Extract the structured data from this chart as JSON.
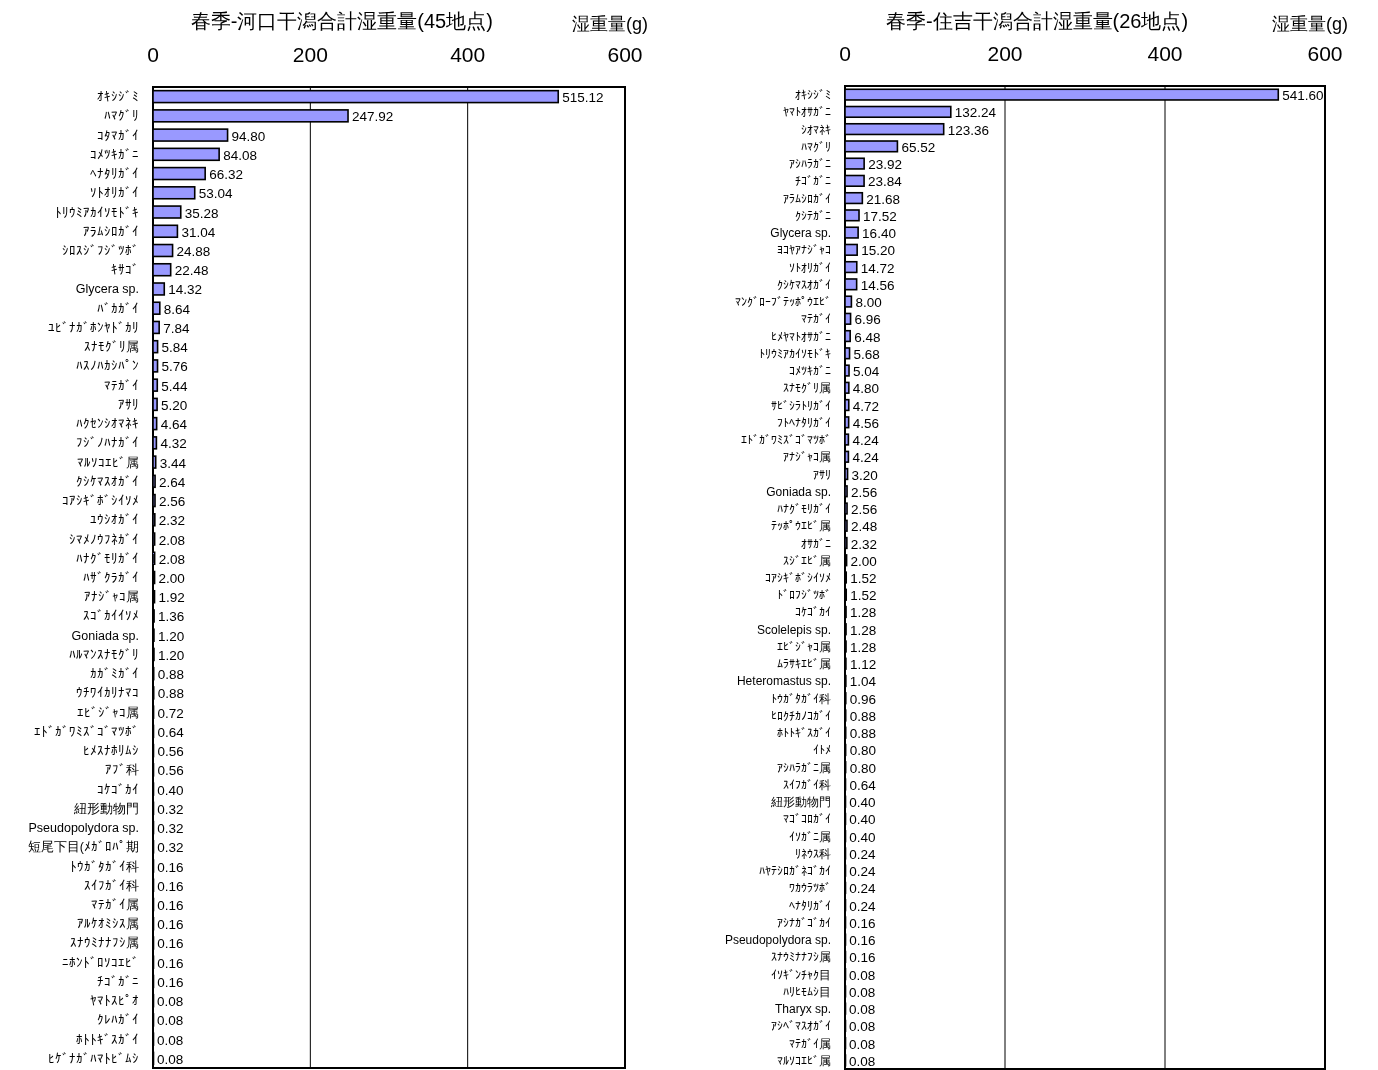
{
  "chart_data": [
    {
      "type": "bar",
      "orientation": "horizontal",
      "title": "春季-河口干潟合計湿重量(45地点)",
      "xlabel": "湿重量(g)",
      "color": "#9999ff",
      "xlim": [
        0,
        600
      ],
      "xticks": [
        0,
        200,
        400,
        600
      ],
      "grid": "x",
      "categories": [
        "ｵｷｼｼﾞﾐ",
        "ﾊﾏｸﾞﾘ",
        "ｺﾀﾏｶﾞｲ",
        "ｺﾒﾂｷｶﾞﾆ",
        "ﾍﾅﾀﾘｶﾞｲ",
        "ｿﾄｵﾘｶﾞｲ",
        "ﾄﾘｳﾐｱｶｲｿﾓﾄﾞｷ",
        "ｱﾗﾑｼﾛｶﾞｲ",
        "ｼﾛｽｼﾞﾌｼﾞﾂﾎﾞ",
        "ｷｻｺﾞ",
        "Glycera sp.",
        "ﾊﾞｶｶﾞｲ",
        "ﾕﾋﾞﾅｶﾞﾎﾝﾔﾄﾞｶﾘ",
        "ｽﾅﾓｸﾞﾘ属",
        "ﾊｽﾉﾊｶｼﾊﾟﾝ",
        "ﾏﾃｶﾞｲ",
        "ｱｻﾘ",
        "ﾊｸｾﾝｼｵﾏﾈｷ",
        "ﾌｼﾞﾉﾊﾅｶﾞｲ",
        "ﾏﾙｿｺｴﾋﾞ属",
        "ｸｼｹﾏｽｵｶﾞｲ",
        "ｺｱｼｷﾞﾎﾞｼｲｿﾒ",
        "ﾕｳｼｵｶﾞｲ",
        "ｼﾏﾒﾉｳﾌﾈｶﾞｲ",
        "ﾊﾅｸﾞﾓﾘｶﾞｲ",
        "ﾊｻﾞｸﾗｶﾞｲ",
        "ｱﾅｼﾞｬｺ属",
        "ｽｺﾞｶｲｲｿﾒ",
        "Goniada sp.",
        "ﾊﾙﾏﾝｽﾅﾓｸﾞﾘ",
        "ｶｶﾞﾐｶﾞｲ",
        "ｳﾁﾜｲｶﾘﾅﾏｺ",
        "ｴﾋﾞｼﾞｬｺ属",
        "ｴﾄﾞｶﾞﾜﾐｽﾞｺﾞﾏﾂﾎﾞ",
        "ﾋﾒｽﾅﾎﾘﾑｼ",
        "ｱﾌﾞ科",
        "ｺｹｺﾞｶｲ",
        "紐形動物門",
        "Pseudopolydora sp.",
        "短尾下目(ﾒｶﾞﾛﾊﾟ期",
        "ﾄｳｶﾞﾀｶﾞｲ科",
        "ｽｲﾌｶﾞｲ科",
        "ﾏﾃｶﾞｲ属",
        "ｱﾙｹｵﾐｼｽ属",
        "ｽﾅｳﾐﾅﾅﾌｼ属",
        "ﾆﾎﾝﾄﾞﾛｿｺｴﾋﾞ",
        "ﾁｺﾞｶﾞﾆ",
        "ﾔﾏﾄｽﾋﾟｵ",
        "ｸﾚﾊｶﾞｲ",
        "ﾎﾄﾄｷﾞｽｶﾞｲ",
        "ﾋｹﾞﾅｶﾞﾊﾏﾄﾋﾞﾑｼ"
      ],
      "values": [
        515.12,
        247.92,
        94.8,
        84.08,
        66.32,
        53.04,
        35.28,
        31.04,
        24.88,
        22.48,
        14.32,
        8.64,
        7.84,
        5.84,
        5.76,
        5.44,
        5.2,
        4.64,
        4.32,
        3.44,
        2.64,
        2.56,
        2.32,
        2.08,
        2.08,
        2.0,
        1.92,
        1.36,
        1.2,
        1.2,
        0.88,
        0.88,
        0.72,
        0.64,
        0.56,
        0.56,
        0.4,
        0.32,
        0.32,
        0.32,
        0.16,
        0.16,
        0.16,
        0.16,
        0.16,
        0.16,
        0.16,
        0.08,
        0.08,
        0.08,
        0.08
      ],
      "value_labels": [
        "515.12",
        "247.92",
        "94.80",
        "84.08",
        "66.32",
        "53.04",
        "35.28",
        "31.04",
        "24.88",
        "22.48",
        "14.32",
        "8.64",
        "7.84",
        "5.84",
        "5.76",
        "5.44",
        "5.20",
        "4.64",
        "4.32",
        "3.44",
        "2.64",
        "2.56",
        "2.32",
        "2.08",
        "2.08",
        "2.00",
        "1.92",
        "1.36",
        "1.20",
        "1.20",
        "0.88",
        "0.88",
        "0.72",
        "0.64",
        "0.56",
        "0.56",
        "0.40",
        "0.32",
        "0.32",
        "0.32",
        "0.16",
        "0.16",
        "0.16",
        "0.16",
        "0.16",
        "0.16",
        "0.16",
        "0.08",
        "0.08",
        "0.08",
        "0.08"
      ]
    },
    {
      "type": "bar",
      "orientation": "horizontal",
      "title": "春季-住吉干潟合計湿重量(26地点)",
      "xlabel": "湿重量(g)",
      "color": "#9999ff",
      "xlim": [
        0,
        600
      ],
      "xticks": [
        0,
        200,
        400,
        600
      ],
      "grid": "x",
      "categories": [
        "ｵｷｼｼﾞﾐ",
        "ﾔﾏﾄｵｻｶﾞﾆ",
        "ｼｵﾏﾈｷ",
        "ﾊﾏｸﾞﾘ",
        "ｱｼﾊﾗｶﾞﾆ",
        "ﾁｺﾞｶﾞﾆ",
        "ｱﾗﾑｼﾛｶﾞｲ",
        "ｸｼﾃｶﾞﾆ",
        "Glycera sp.",
        "ﾖｺﾔｱﾅｼﾞｬｺ",
        "ｿﾄｵﾘｶﾞｲ",
        "ｸｼｹﾏｽｵｶﾞｲ",
        "ﾏﾝｸﾞﾛｰﾌﾞﾃｯﾎﾟｳｴﾋﾞ",
        "ﾏﾃｶﾞｲ",
        "ﾋﾒﾔﾏﾄｵｻｶﾞﾆ",
        "ﾄﾘｳﾐｱｶｲｿﾓﾄﾞｷ",
        "ｺﾒﾂｷｶﾞﾆ",
        "ｽﾅﾓｸﾞﾘ属",
        "ｻﾋﾞｼﾗﾄﾘｶﾞｲ",
        "ﾌﾄﾍﾅﾀﾘｶﾞｲ",
        "ｴﾄﾞｶﾞﾜﾐｽﾞｺﾞﾏﾂﾎﾞ",
        "ｱﾅｼﾞｬｺ属",
        "ｱｻﾘ",
        "Goniada sp.",
        "ﾊﾅｸﾞﾓﾘｶﾞｲ",
        "ﾃｯﾎﾟｳｴﾋﾞ属",
        "ｵｻｶﾞﾆ",
        "ｽｼﾞｴﾋﾞ属",
        "ｺｱｼｷﾞﾎﾞｼｲｿﾒ",
        "ﾄﾞﾛﾌｼﾞﾂﾎﾞ",
        "ｺｹｺﾞｶｲ",
        "Scolelepis sp.",
        "ｴﾋﾞｼﾞｬｺ属",
        "ﾑﾗｻｷｴﾋﾞ属",
        "Heteromastus sp.",
        "ﾄｳｶﾞﾀｶﾞｲ科",
        "ﾋﾛｸﾁｶﾉｺｶﾞｲ",
        "ﾎﾄﾄｷﾞｽｶﾞｲ",
        "ｲﾄﾒ",
        "ｱｼﾊﾗｶﾞﾆ属",
        "ｽｲﾌｶﾞｲ科",
        "紐形動物門",
        "ﾏｺﾞｺﾛｶﾞｲ",
        "ｲｿｶﾞﾆ属",
        "ﾘﾈｳｽ科",
        "ﾊﾔﾃｼﾛｶﾞﾈｺﾞｶｲ",
        "ﾜｶｳﾗﾂﾎﾞ",
        "ﾍﾅﾀﾘｶﾞｲ",
        "ｱｼﾅｶﾞｺﾞｶｲ",
        "Pseudopolydora sp.",
        "ｽﾅｳﾐﾅﾅﾌｼ属",
        "ｲｿｷﾞﾝﾁｬｸ目",
        "ﾊﾘﾋﾓﾑｼ目",
        "Tharyx sp.",
        "ｱｼﾍﾞﾏｽｵｶﾞｲ",
        "ﾏﾃｶﾞｲ属",
        "ﾏﾙｿｺｴﾋﾞ属"
      ],
      "values": [
        541.6,
        132.24,
        123.36,
        65.52,
        23.92,
        23.84,
        21.68,
        17.52,
        16.4,
        15.2,
        14.72,
        14.56,
        8.0,
        6.96,
        6.48,
        5.68,
        5.04,
        4.8,
        4.72,
        4.56,
        4.24,
        4.24,
        3.2,
        2.56,
        2.56,
        2.48,
        2.32,
        2.0,
        1.52,
        1.52,
        1.28,
        1.28,
        1.28,
        1.12,
        1.04,
        0.96,
        0.88,
        0.88,
        0.8,
        0.8,
        0.64,
        0.4,
        0.4,
        0.4,
        0.24,
        0.24,
        0.24,
        0.24,
        0.16,
        0.16,
        0.16,
        0.08,
        0.08,
        0.08,
        0.08,
        0.08,
        0.08
      ],
      "value_labels": [
        "541.60",
        "132.24",
        "123.36",
        "65.52",
        "23.92",
        "23.84",
        "21.68",
        "17.52",
        "16.40",
        "15.20",
        "14.72",
        "14.56",
        "8.00",
        "6.96",
        "6.48",
        "5.68",
        "5.04",
        "4.80",
        "4.72",
        "4.56",
        "4.24",
        "4.24",
        "3.20",
        "2.56",
        "2.56",
        "2.48",
        "2.32",
        "2.00",
        "1.52",
        "1.52",
        "1.28",
        "1.28",
        "1.28",
        "1.12",
        "1.04",
        "0.96",
        "0.88",
        "0.88",
        "0.80",
        "0.80",
        "0.64",
        "0.40",
        "0.40",
        "0.40",
        "0.24",
        "0.24",
        "0.24",
        "0.24",
        "0.16",
        "0.16",
        "0.16",
        "0.08",
        "0.08",
        "0.08",
        "0.08",
        "0.08",
        "0.08"
      ]
    }
  ]
}
